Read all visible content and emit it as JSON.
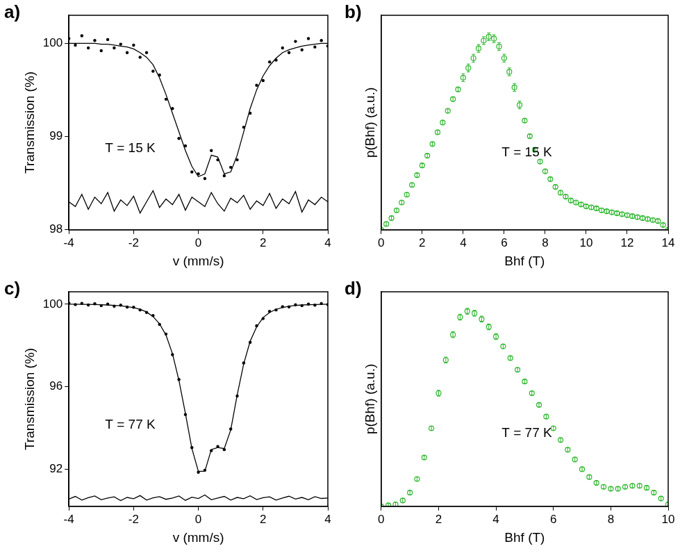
{
  "chart_data": [
    {
      "type": "scatter",
      "title": "a)",
      "x_label": "v (mm/s)",
      "y_label": "Transmission (%)",
      "annotations": [
        "T = 15 K"
      ],
      "xlim": [
        -4,
        4
      ],
      "xticks": [
        -4,
        -2,
        0,
        2,
        4
      ],
      "ylim": [
        98,
        100.3
      ],
      "yticks": [
        98,
        99,
        100
      ],
      "grid": false,
      "x": [
        -4,
        -3.8,
        -3.6,
        -3.4,
        -3.2,
        -3,
        -2.8,
        -2.6,
        -2.4,
        -2.2,
        -2,
        -1.8,
        -1.6,
        -1.4,
        -1.2,
        -1,
        -0.8,
        -0.6,
        -0.4,
        -0.2,
        0,
        0.2,
        0.4,
        0.6,
        0.8,
        1,
        1.2,
        1.4,
        1.6,
        1.8,
        2,
        2.2,
        2.4,
        2.6,
        2.8,
        3,
        3.2,
        3.4,
        3.6,
        3.8,
        4
      ],
      "series": [
        {
          "type": "scatter",
          "marker": "circle",
          "color": "#000000",
          "values": [
            100.05,
            99.98,
            100.08,
            99.95,
            100.03,
            99.92,
            100.04,
            99.95,
            99.99,
            99.9,
            99.98,
            99.85,
            99.9,
            99.7,
            99.66,
            99.4,
            99.3,
            98.98,
            98.9,
            98.62,
            98.6,
            98.55,
            98.85,
            98.75,
            98.58,
            98.67,
            98.75,
            99.1,
            99.25,
            99.55,
            99.6,
            99.8,
            99.82,
            99.95,
            99.9,
            100.02,
            99.93,
            100.05,
            99.96,
            100.03,
            99.97
          ]
        },
        {
          "type": "line",
          "line_style": "solid",
          "color": "#000000",
          "values": [
            100.0,
            100.0,
            100.0,
            100.0,
            100.0,
            99.99,
            99.99,
            99.98,
            99.97,
            99.96,
            99.94,
            99.9,
            99.85,
            99.77,
            99.63,
            99.45,
            99.25,
            99.05,
            98.85,
            98.68,
            98.57,
            98.6,
            98.8,
            98.78,
            98.6,
            98.62,
            98.8,
            99.05,
            99.3,
            99.5,
            99.65,
            99.76,
            99.84,
            99.9,
            99.93,
            99.95,
            99.97,
            99.98,
            99.99,
            100.0,
            100.0
          ]
        },
        {
          "type": "line",
          "line_style": "solid",
          "color": "#000000",
          "values": [
            98.3,
            98.25,
            98.38,
            98.22,
            98.35,
            98.28,
            98.4,
            98.2,
            98.32,
            98.26,
            98.36,
            98.18,
            98.3,
            98.42,
            98.24,
            98.33,
            98.27,
            98.38,
            98.21,
            98.35,
            98.3,
            98.25,
            98.4,
            98.28,
            98.2,
            98.34,
            98.29,
            98.37,
            98.22,
            98.31,
            98.26,
            98.39,
            98.23,
            98.33,
            98.28,
            98.41,
            98.19,
            98.32,
            98.27,
            98.35,
            98.3
          ]
        }
      ]
    },
    {
      "type": "scatter",
      "title": "b)",
      "x_label": "Bhf (T)",
      "y_label": "p(Bhf) (a.u.)",
      "annotations": [
        "T = 15 K"
      ],
      "xlim": [
        0,
        14
      ],
      "xticks": [
        0,
        2,
        4,
        6,
        8,
        10,
        12,
        14
      ],
      "ylim": [
        0,
        1.1
      ],
      "grid": false,
      "tick_labels": "x",
      "x": [
        0,
        0.25,
        0.5,
        0.75,
        1,
        1.25,
        1.5,
        1.75,
        2,
        2.25,
        2.5,
        2.75,
        3,
        3.25,
        3.5,
        3.75,
        4,
        4.25,
        4.5,
        4.75,
        5,
        5.25,
        5.5,
        5.75,
        6,
        6.25,
        6.5,
        6.75,
        7,
        7.25,
        7.5,
        7.75,
        8,
        8.25,
        8.5,
        8.75,
        9,
        9.25,
        9.5,
        9.75,
        10,
        10.25,
        10.5,
        10.75,
        11,
        11.25,
        11.5,
        11.75,
        12,
        12.25,
        12.5,
        12.75,
        13,
        13.25,
        13.5,
        13.75,
        14
      ],
      "series": [
        {
          "type": "scatter",
          "marker": "circle_open",
          "color": "#2eb82e",
          "values": [
            0.0,
            0.03,
            0.06,
            0.1,
            0.14,
            0.18,
            0.23,
            0.28,
            0.33,
            0.38,
            0.44,
            0.5,
            0.55,
            0.61,
            0.67,
            0.72,
            0.78,
            0.83,
            0.88,
            0.93,
            0.97,
            0.99,
            0.98,
            0.94,
            0.88,
            0.81,
            0.73,
            0.64,
            0.56,
            0.48,
            0.41,
            0.35,
            0.3,
            0.26,
            0.22,
            0.19,
            0.17,
            0.15,
            0.14,
            0.13,
            0.12,
            0.115,
            0.11,
            0.1,
            0.095,
            0.09,
            0.085,
            0.08,
            0.075,
            0.07,
            0.065,
            0.06,
            0.055,
            0.05,
            0.045,
            0.025,
            0.0
          ],
          "errors": [
            0.01,
            0.01,
            0.01,
            0.01,
            0.01,
            0.01,
            0.01,
            0.01,
            0.01,
            0.01,
            0.01,
            0.01,
            0.01,
            0.01,
            0.01,
            0.01,
            0.02,
            0.02,
            0.02,
            0.02,
            0.02,
            0.02,
            0.02,
            0.02,
            0.02,
            0.02,
            0.02,
            0.02,
            0.01,
            0.01,
            0.01,
            0.01,
            0.01,
            0.01,
            0.01,
            0.01,
            0.01,
            0.01,
            0.01,
            0.01,
            0.01,
            0.01,
            0.01,
            0.01,
            0.01,
            0.01,
            0.01,
            0.01,
            0.01,
            0.01,
            0.01,
            0.01,
            0.01,
            0.01,
            0.01,
            0.01,
            0.01
          ]
        }
      ]
    },
    {
      "type": "scatter",
      "title": "c)",
      "x_label": "v (mm/s)",
      "y_label": "Transmission (%)",
      "annotations": [
        "T = 77 K"
      ],
      "xlim": [
        -4,
        4
      ],
      "xticks": [
        -4,
        -2,
        0,
        2,
        4
      ],
      "ylim": [
        90.2,
        100.6
      ],
      "yticks": [
        92,
        96,
        100
      ],
      "grid": false,
      "x": [
        -4,
        -3.8,
        -3.6,
        -3.4,
        -3.2,
        -3,
        -2.8,
        -2.6,
        -2.4,
        -2.2,
        -2,
        -1.8,
        -1.6,
        -1.4,
        -1.2,
        -1,
        -0.8,
        -0.6,
        -0.4,
        -0.2,
        0,
        0.2,
        0.4,
        0.6,
        0.8,
        1,
        1.2,
        1.4,
        1.6,
        1.8,
        2,
        2.2,
        2.4,
        2.6,
        2.8,
        3,
        3.2,
        3.4,
        3.6,
        3.8,
        4
      ],
      "series": [
        {
          "type": "scatter",
          "marker": "circle",
          "color": "#000000",
          "values": [
            100.05,
            99.98,
            100.04,
            99.96,
            100.02,
            99.93,
            100.0,
            99.9,
            99.95,
            99.86,
            99.85,
            99.72,
            99.6,
            99.45,
            99.02,
            98.55,
            97.55,
            96.35,
            94.65,
            93.05,
            91.85,
            91.95,
            92.9,
            93.1,
            92.95,
            93.95,
            95.55,
            97.15,
            98.15,
            98.95,
            99.3,
            99.65,
            99.72,
            99.88,
            99.87,
            99.97,
            99.93,
            100.0,
            99.95,
            100.03,
            99.98
          ]
        },
        {
          "type": "line",
          "line_style": "solid",
          "color": "#000000",
          "values": [
            100.0,
            100.0,
            99.99,
            99.99,
            99.98,
            99.97,
            99.96,
            99.94,
            99.92,
            99.88,
            99.83,
            99.75,
            99.62,
            99.4,
            99.05,
            98.5,
            97.6,
            96.3,
            94.7,
            93.0,
            91.9,
            91.9,
            92.95,
            93.05,
            93.0,
            93.9,
            95.6,
            97.1,
            98.2,
            98.9,
            99.35,
            99.6,
            99.75,
            99.84,
            99.9,
            99.94,
            99.96,
            99.97,
            99.98,
            99.99,
            100.0
          ]
        },
        {
          "type": "line",
          "line_style": "solid",
          "color": "#000000",
          "values": [
            90.55,
            90.68,
            90.5,
            90.62,
            90.7,
            90.52,
            90.6,
            90.66,
            90.48,
            90.63,
            90.57,
            90.72,
            90.5,
            90.61,
            90.67,
            90.54,
            90.6,
            90.7,
            90.49,
            90.64,
            90.58,
            90.75,
            90.52,
            90.6,
            90.68,
            90.5,
            90.63,
            90.57,
            90.71,
            90.53,
            90.62,
            90.66,
            90.5,
            90.6,
            90.69,
            90.55,
            90.63,
            90.52,
            90.67,
            90.58,
            90.6
          ]
        }
      ]
    },
    {
      "type": "scatter",
      "title": "d)",
      "x_label": "Bhf (T)",
      "y_label": "p(Bhf) (a.u.)",
      "annotations": [
        "T = 77 K"
      ],
      "xlim": [
        0,
        10
      ],
      "xticks": [
        0,
        2,
        4,
        6,
        8,
        10
      ],
      "ylim": [
        0,
        1.1
      ],
      "grid": false,
      "tick_labels": "x",
      "x": [
        0,
        0.25,
        0.5,
        0.75,
        1,
        1.25,
        1.5,
        1.75,
        2,
        2.25,
        2.5,
        2.75,
        3,
        3.25,
        3.5,
        3.75,
        4,
        4.25,
        4.5,
        4.75,
        5,
        5.25,
        5.5,
        5.75,
        6,
        6.25,
        6.5,
        6.75,
        7,
        7.25,
        7.5,
        7.75,
        8,
        8.25,
        8.5,
        8.75,
        9,
        9.25,
        9.5,
        9.75,
        10
      ],
      "series": [
        {
          "type": "scatter",
          "marker": "circle_open",
          "color": "#2eb82e",
          "values": [
            0.0,
            0.005,
            0.01,
            0.03,
            0.07,
            0.14,
            0.25,
            0.4,
            0.58,
            0.75,
            0.88,
            0.97,
            1.0,
            0.99,
            0.96,
            0.92,
            0.87,
            0.82,
            0.76,
            0.7,
            0.64,
            0.58,
            0.52,
            0.46,
            0.4,
            0.34,
            0.29,
            0.24,
            0.19,
            0.15,
            0.12,
            0.1,
            0.09,
            0.09,
            0.1,
            0.105,
            0.105,
            0.095,
            0.07,
            0.04,
            0.01
          ],
          "errors": [
            0.01,
            0.01,
            0.01,
            0.01,
            0.01,
            0.01,
            0.01,
            0.01,
            0.015,
            0.015,
            0.015,
            0.015,
            0.015,
            0.015,
            0.015,
            0.015,
            0.015,
            0.01,
            0.01,
            0.01,
            0.01,
            0.01,
            0.01,
            0.01,
            0.01,
            0.01,
            0.01,
            0.01,
            0.01,
            0.01,
            0.01,
            0.01,
            0.01,
            0.01,
            0.01,
            0.01,
            0.01,
            0.01,
            0.01,
            0.01,
            0.01
          ]
        }
      ]
    }
  ]
}
